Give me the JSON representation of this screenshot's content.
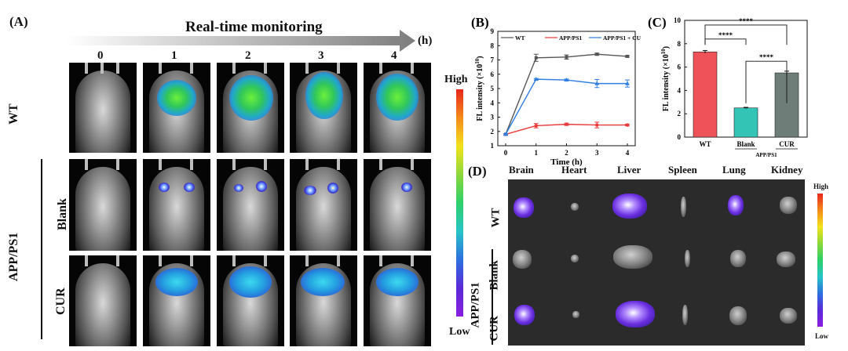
{
  "panelA": {
    "label": "(A)",
    "monitoring_title": "Real-time monitoring",
    "unit": "(h)",
    "timepoints": [
      "0",
      "1",
      "2",
      "3",
      "4"
    ],
    "row_wt": "WT",
    "row_blank": "Blank",
    "row_cur": "CUR",
    "group": "APP/PS1",
    "scale_high": "High",
    "scale_low": "Low"
  },
  "panelD": {
    "label": "(D)",
    "organs": [
      "Brain",
      "Heart",
      "Liver",
      "Spleen",
      "Lung",
      "Kidney"
    ],
    "row_wt": "WT",
    "row_blank": "Blank",
    "row_cur": "CUR",
    "group": "APP/PS1",
    "scale_high": "High",
    "scale_low": "Low"
  },
  "chart_data": [
    {
      "type": "line",
      "panel": "(B)",
      "xlabel": "Time (h)",
      "ylabel": "FL intensity (×10",
      "ylabel_exp": "10",
      "ylabel_close": ")",
      "x": [
        0,
        1,
        2,
        3,
        4
      ],
      "xlim": [
        0,
        4
      ],
      "ylim": [
        1,
        9
      ],
      "yticks": [
        1,
        2,
        3,
        4,
        5,
        6,
        7,
        8,
        9
      ],
      "series": [
        {
          "name": "WT",
          "color": "#555555",
          "marker": "square",
          "values": [
            1.8,
            7.15,
            7.2,
            7.4,
            7.25
          ],
          "errors": [
            0.05,
            0.25,
            0.15,
            0.08,
            0.06
          ]
        },
        {
          "name": "APP/PS1",
          "color": "#e8393b",
          "marker": "circle",
          "values": [
            1.8,
            2.4,
            2.5,
            2.45,
            2.45
          ],
          "errors": [
            0.05,
            0.15,
            0.08,
            0.2,
            0.06
          ]
        },
        {
          "name": "APP/PS1 + CUR",
          "color": "#2f7ee0",
          "marker": "triangle",
          "values": [
            1.8,
            5.65,
            5.6,
            5.35,
            5.35
          ],
          "errors": [
            0.05,
            0.05,
            0.06,
            0.28,
            0.25
          ]
        }
      ]
    },
    {
      "type": "bar",
      "panel": "(C)",
      "ylabel": "FL intensity (×10",
      "ylabel_exp": "10",
      "ylabel_close": ")",
      "categories": [
        "WT",
        "Blank",
        "CUR"
      ],
      "subcategory_label": "APP/PS1",
      "values": [
        7.3,
        2.5,
        5.5
      ],
      "errors": [
        0.12,
        0.05,
        0.15
      ],
      "colors": [
        "#f0525a",
        "#33c4b6",
        "#6f7d79"
      ],
      "ylim": [
        0,
        10
      ],
      "yticks": [
        0,
        2,
        4,
        6,
        8,
        10
      ],
      "significance": [
        {
          "pair": [
            "WT",
            "Blank"
          ],
          "label": "****"
        },
        {
          "pair": [
            "WT",
            "CUR"
          ],
          "label": "****"
        },
        {
          "pair": [
            "Blank",
            "CUR"
          ],
          "label": "****"
        }
      ]
    }
  ]
}
